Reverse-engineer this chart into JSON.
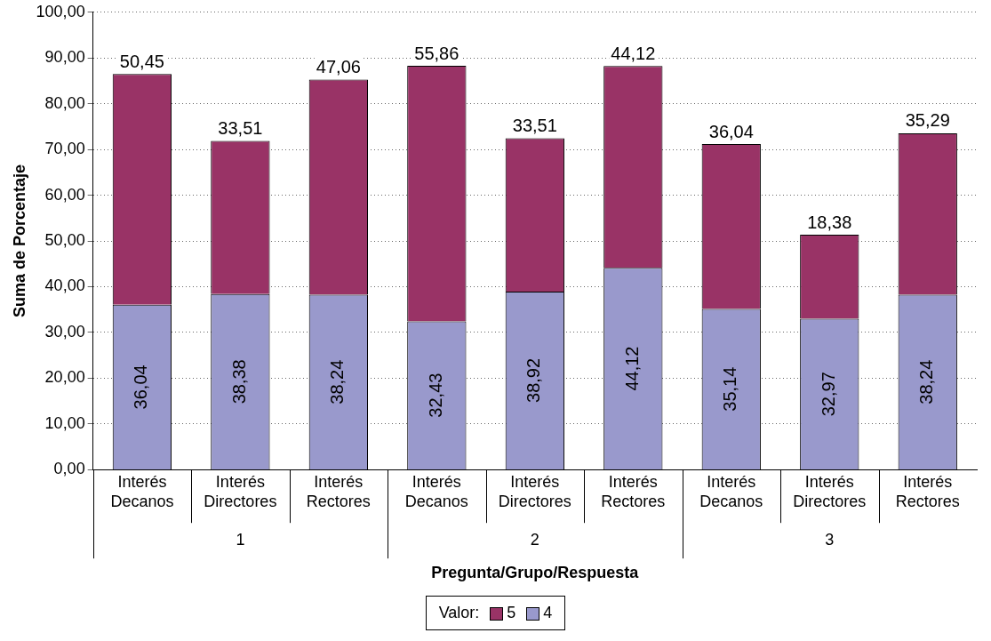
{
  "chart_data": {
    "type": "bar",
    "stacked": true,
    "xlabel": "Pregunta/Grupo/Respuesta",
    "ylabel": "Suma de Porcentaje",
    "legend_title": "Valor:",
    "legend": "bottom",
    "grid": "y",
    "data_labels": true,
    "categories": [
      "Interés Decanos",
      "Interés Directores",
      "Interés Rectores",
      "Interés Decanos",
      "Interés Directores",
      "Interés Rectores",
      "Interés Decanos",
      "Interés Directores",
      "Interés Rectores"
    ],
    "annotations": [
      "1",
      "2",
      "3"
    ],
    "series": [
      {
        "name": "4",
        "color": "#9999cc",
        "values": [
          36.04,
          38.38,
          38.24,
          32.43,
          38.92,
          44.12,
          35.14,
          32.97,
          38.24
        ],
        "value_labels": [
          "36,04",
          "38,38",
          "38,24",
          "32,43",
          "38,92",
          "44,12",
          "35,14",
          "32,97",
          "38,24"
        ]
      },
      {
        "name": "5",
        "color": "#993366",
        "values": [
          50.45,
          33.51,
          47.06,
          55.86,
          33.51,
          44.12,
          36.04,
          18.38,
          35.29
        ],
        "value_labels": [
          "50,45",
          "33,51",
          "47,06",
          "55,86",
          "33,51",
          "44,12",
          "36,04",
          "18,38",
          "35,29"
        ]
      }
    ],
    "ylim": [
      0,
      100
    ],
    "yticks": [
      {
        "value": 0,
        "label": "0,00"
      },
      {
        "value": 10,
        "label": "10,00"
      },
      {
        "value": 20,
        "label": "20,00"
      },
      {
        "value": 30,
        "label": "30,00"
      },
      {
        "value": 40,
        "label": "40,00"
      },
      {
        "value": 50,
        "label": "50,00"
      },
      {
        "value": 60,
        "label": "60,00"
      },
      {
        "value": 70,
        "label": "70,00"
      },
      {
        "value": 80,
        "label": "80,00"
      },
      {
        "value": 90,
        "label": "90,00"
      },
      {
        "value": 100,
        "label": "100,00"
      }
    ]
  }
}
